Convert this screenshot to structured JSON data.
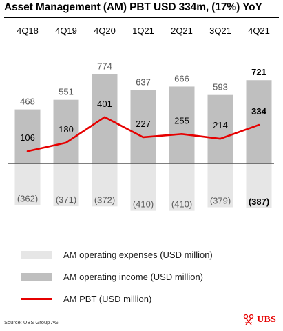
{
  "title": "Asset Management (AM) PBT USD 334m, (17%) YoY",
  "chart_data": {
    "type": "bar",
    "categories": [
      "4Q18",
      "4Q19",
      "4Q20",
      "1Q21",
      "2Q21",
      "3Q21",
      "4Q21"
    ],
    "series": [
      {
        "name": "AM operating expenses (USD million)",
        "type": "bar",
        "values": [
          -362,
          -371,
          -372,
          -410,
          -410,
          -379,
          -387
        ],
        "labels": [
          "(362)",
          "(371)",
          "(372)",
          "(410)",
          "(410)",
          "(379)",
          "(387)"
        ],
        "color": "#e6e6e6"
      },
      {
        "name": "AM operating income (USD million)",
        "type": "bar",
        "values": [
          468,
          551,
          774,
          637,
          666,
          593,
          721
        ],
        "labels": [
          "468",
          "551",
          "774",
          "637",
          "666",
          "593",
          "721"
        ],
        "color": "#bfbfbf"
      },
      {
        "name": "AM PBT (USD million)",
        "type": "line",
        "values": [
          106,
          180,
          401,
          227,
          255,
          214,
          334
        ],
        "labels": [
          "106",
          "180",
          "401",
          "227",
          "255",
          "214",
          "334"
        ],
        "color": "#e60000"
      }
    ],
    "highlight_category": "4Q21",
    "text_color": "#595959",
    "highlight_color": "#000000",
    "axis_color": "#000000",
    "grid": false
  },
  "legend": [
    {
      "label": "AM operating expenses (USD million)",
      "key": "exp"
    },
    {
      "label": "AM operating income (USD million)",
      "key": "inc"
    },
    {
      "label": "AM PBT (USD million)",
      "key": "pbt"
    }
  ],
  "source": "Source: UBS Group AG",
  "logo": {
    "text": "UBS",
    "color": "#e60000",
    "icon": "keys-icon"
  }
}
